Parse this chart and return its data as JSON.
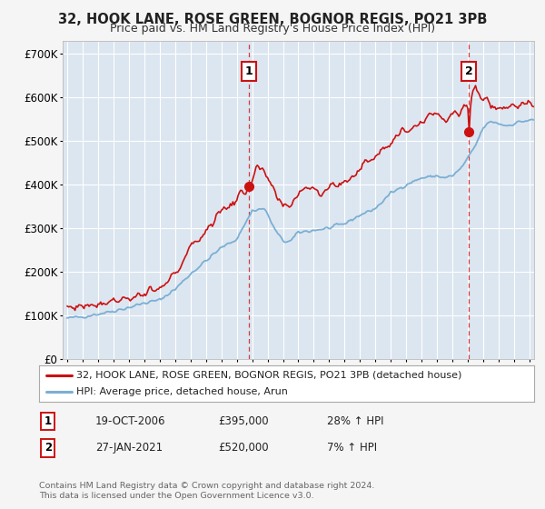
{
  "title": "32, HOOK LANE, ROSE GREEN, BOGNOR REGIS, PO21 3PB",
  "subtitle": "Price paid vs. HM Land Registry's House Price Index (HPI)",
  "ylim": [
    0,
    730000
  ],
  "yticks": [
    0,
    100000,
    200000,
    300000,
    400000,
    500000,
    600000,
    700000
  ],
  "xlim_start": 1994.7,
  "xlim_end": 2025.3,
  "background_color": "#dce6f0",
  "fig_bg": "#f2f2f2",
  "grid_color": "#ffffff",
  "sale1_x": 2006.8,
  "sale1_y": 395000,
  "sale1_label": "1",
  "sale1_date": "19-OCT-2006",
  "sale1_price": "£395,000",
  "sale1_hpi": "28% ↑ HPI",
  "sale2_x": 2021.07,
  "sale2_y": 520000,
  "sale2_label": "2",
  "sale2_date": "27-JAN-2021",
  "sale2_price": "£520,000",
  "sale2_hpi": "7% ↑ HPI",
  "legend_line1": "32, HOOK LANE, ROSE GREEN, BOGNOR REGIS, PO21 3PB (detached house)",
  "legend_line2": "HPI: Average price, detached house, Arun",
  "footer1": "Contains HM Land Registry data © Crown copyright and database right 2024.",
  "footer2": "This data is licensed under the Open Government Licence v3.0.",
  "hpi_color": "#7bafd4",
  "price_color": "#cc1111"
}
